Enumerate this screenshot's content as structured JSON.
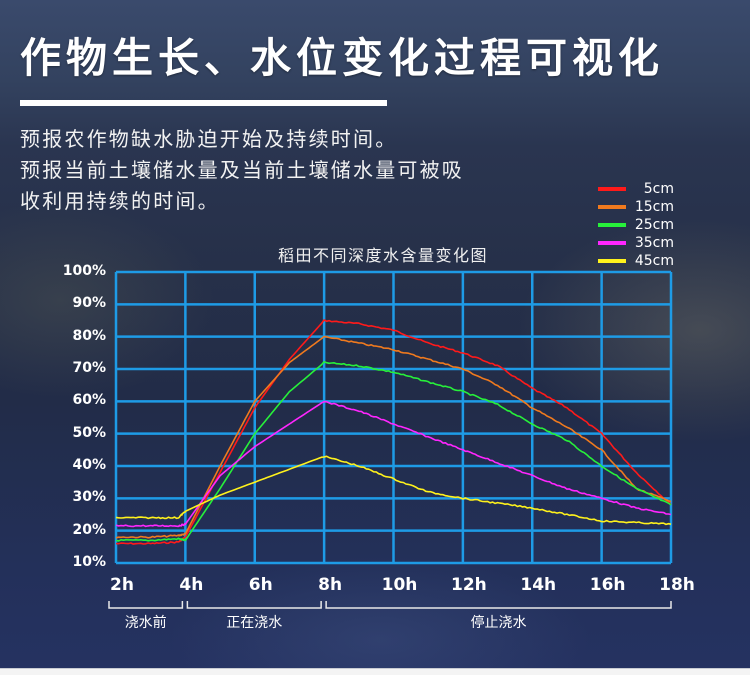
{
  "header": {
    "title": "作物生长、水位变化过程可视化",
    "description_lines": [
      "预报农作物缺水胁迫开始及持续时间。",
      "预报当前土壤储水量及当前土壤储水量可被吸",
      "收利用持续的时间。"
    ]
  },
  "colors": {
    "grid": "#1e9be6",
    "5cm": "#ff1a1a",
    "15cm": "#f07a1e",
    "25cm": "#27f03a",
    "35cm": "#ff26ff",
    "45cm": "#fff21c"
  },
  "legend": [
    {
      "label": "5cm",
      "color": "#ff1a1a"
    },
    {
      "label": "15cm",
      "color": "#f07a1e"
    },
    {
      "label": "25cm",
      "color": "#27f03a"
    },
    {
      "label": "35cm",
      "color": "#ff26ff"
    },
    {
      "label": "45cm",
      "color": "#fff21c"
    }
  ],
  "phases": [
    {
      "label": "浇水前",
      "from": "2h",
      "to": "4h"
    },
    {
      "label": "正在浇水",
      "from": "4h",
      "to": "8h"
    },
    {
      "label": "停止浇水",
      "from": "8h",
      "to": "18h"
    }
  ],
  "chart_data": {
    "type": "line",
    "title": "稻田不同深度水含量变化图",
    "xlabel": "",
    "ylabel": "",
    "x": [
      "2h",
      "4h",
      "6h",
      "8h",
      "10h",
      "12h",
      "14h",
      "16h",
      "18h"
    ],
    "x_hours": [
      2,
      3,
      3.8,
      4,
      5,
      6,
      7,
      8,
      9,
      10,
      11,
      12,
      13,
      14,
      15,
      16,
      17,
      18
    ],
    "y_ticks": [
      "10%",
      "20%",
      "30%",
      "40%",
      "50%",
      "60%",
      "70%",
      "80%",
      "90%",
      "100%"
    ],
    "ylim": [
      10,
      100
    ],
    "xlim": [
      2,
      18
    ],
    "grid": true,
    "legend_position": "top-right",
    "series": [
      {
        "name": "5cm",
        "values": [
          16,
          16,
          16.5,
          18,
          38,
          58,
          73,
          85,
          84,
          82,
          78,
          75,
          71,
          64,
          58,
          50,
          38,
          28
        ]
      },
      {
        "name": "15cm",
        "values": [
          18,
          18,
          18.5,
          19,
          40,
          60,
          72,
          80,
          78,
          76,
          73,
          70,
          65,
          58,
          52,
          45,
          33,
          29
        ]
      },
      {
        "name": "25cm",
        "values": [
          17,
          17,
          17.5,
          17,
          33,
          50,
          63,
          72,
          71,
          69,
          66,
          63,
          59,
          53,
          48,
          40,
          33,
          28
        ]
      },
      {
        "name": "35cm",
        "values": [
          21.5,
          21.5,
          21.5,
          22,
          37,
          46,
          53,
          60,
          57,
          53,
          49,
          45,
          41,
          37,
          33,
          30,
          27,
          25
        ]
      },
      {
        "name": "45cm",
        "values": [
          24,
          24,
          24,
          26,
          31,
          35,
          39,
          43,
          40,
          36,
          32,
          30,
          28.5,
          27,
          25,
          23,
          22.5,
          22
        ]
      }
    ]
  }
}
